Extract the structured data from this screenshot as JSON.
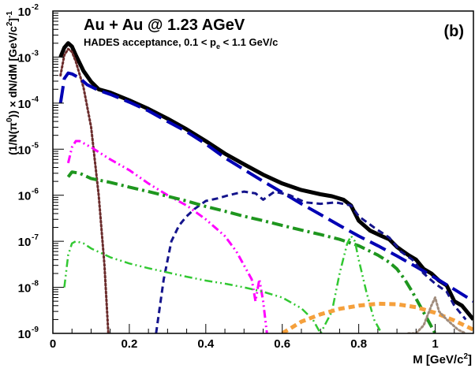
{
  "chart_data": {
    "type": "line",
    "title": "Au + Au @ 1.23 AGeV",
    "subtitle": {
      "prefix": "HADES acceptance, 0.1 < p",
      "sub": "e",
      "suffix": " < 1.1 GeV/c"
    },
    "panel_label": "(b)",
    "xlabel": {
      "prefix": "M  [GeV/c",
      "sup": "2",
      "suffix": "]"
    },
    "ylabel": {
      "parts": [
        {
          "t": "(1/N(",
          "s": "base"
        },
        {
          "t": "π",
          "s": "base"
        },
        {
          "t": "0",
          "s": "sup"
        },
        {
          "t": "))  ×  dN/dM  [GeV/c",
          "s": "base"
        },
        {
          "t": "2",
          "s": "sup"
        },
        {
          "t": "]",
          "s": "base"
        },
        {
          "t": "-1",
          "s": "sup"
        }
      ]
    },
    "xlim": [
      0,
      1.1
    ],
    "ylim": [
      1e-09,
      0.01
    ],
    "y_scale": "log",
    "x_ticks": [
      "0",
      "0.2",
      "0.4",
      "0.6",
      "0.8",
      "1"
    ],
    "x_tick_values": [
      0,
      0.2,
      0.4,
      0.6,
      0.8,
      1.0
    ],
    "y_ticks": [
      {
        "base": "10",
        "exp": "-9"
      },
      {
        "base": "10",
        "exp": "-8"
      },
      {
        "base": "10",
        "exp": "-7"
      },
      {
        "base": "10",
        "exp": "-6"
      },
      {
        "base": "10",
        "exp": "-5"
      },
      {
        "base": "10",
        "exp": "-4"
      },
      {
        "base": "10",
        "exp": "-3"
      },
      {
        "base": "10",
        "exp": "-2"
      }
    ],
    "y_tick_values": [
      1e-09,
      1e-08,
      1e-07,
      1e-06,
      1e-05,
      0.0001,
      0.001,
      0.01
    ],
    "grid": false,
    "series": [
      {
        "color": "#000000",
        "style": "solid",
        "width": 5,
        "points": [
          [
            0.02,
            0.001
          ],
          [
            0.03,
            0.0016
          ],
          [
            0.04,
            0.002
          ],
          [
            0.05,
            0.0017
          ],
          [
            0.06,
            0.0011
          ],
          [
            0.08,
            0.0005
          ],
          [
            0.1,
            0.00029
          ],
          [
            0.12,
            0.0002
          ],
          [
            0.15,
            0.00017
          ],
          [
            0.2,
            0.000115
          ],
          [
            0.25,
            7.5e-05
          ],
          [
            0.3,
            4.6e-05
          ],
          [
            0.35,
            2.7e-05
          ],
          [
            0.4,
            1.5e-05
          ],
          [
            0.45,
            8e-06
          ],
          [
            0.5,
            4.7e-06
          ],
          [
            0.55,
            2.8e-06
          ],
          [
            0.6,
            1.8e-06
          ],
          [
            0.65,
            1.3e-06
          ],
          [
            0.7,
            1.05e-06
          ],
          [
            0.73,
            9.5e-07
          ],
          [
            0.76,
            8e-07
          ],
          [
            0.78,
            6e-07
          ],
          [
            0.8,
            2.8e-07
          ],
          [
            0.83,
            1.7e-07
          ],
          [
            0.86,
            1.3e-07
          ],
          [
            0.88,
            1.1e-07
          ],
          [
            0.9,
            7.5e-08
          ],
          [
            0.93,
            5e-08
          ],
          [
            0.95,
            4e-08
          ],
          [
            0.97,
            2.5e-08
          ],
          [
            0.99,
            2e-08
          ],
          [
            1.01,
            1.4e-08
          ],
          [
            1.03,
            1.1e-08
          ],
          [
            1.05,
            5e-09
          ],
          [
            1.07,
            4e-09
          ],
          [
            1.1,
            2e-09
          ]
        ]
      },
      {
        "color": "#6b2c2c",
        "style": "dotted",
        "width": 3,
        "points": [
          [
            0.02,
            0.0004
          ],
          [
            0.03,
            0.0011
          ],
          [
            0.04,
            0.0015
          ],
          [
            0.05,
            0.0013
          ],
          [
            0.06,
            0.0008
          ],
          [
            0.08,
            0.00022
          ],
          [
            0.1,
            3e-05
          ],
          [
            0.12,
            1e-06
          ],
          [
            0.135,
            3e-08
          ],
          [
            0.145,
            1e-09
          ]
        ]
      },
      {
        "color": "#0000b4",
        "style": "longdash",
        "width": 4,
        "points": [
          [
            0.02,
            0.0001
          ],
          [
            0.03,
            0.00034
          ],
          [
            0.04,
            0.00045
          ],
          [
            0.05,
            0.00043
          ],
          [
            0.07,
            0.00035
          ],
          [
            0.09,
            0.00025
          ],
          [
            0.12,
            0.00019
          ],
          [
            0.15,
            0.000155
          ],
          [
            0.2,
            0.000105
          ],
          [
            0.25,
            6.8e-05
          ],
          [
            0.3,
            4e-05
          ],
          [
            0.35,
            2.4e-05
          ],
          [
            0.4,
            1.3e-05
          ],
          [
            0.45,
            6.5e-06
          ],
          [
            0.5,
            3.6e-06
          ],
          [
            0.55,
            2e-06
          ],
          [
            0.6,
            1.15e-06
          ],
          [
            0.65,
            6.5e-07
          ],
          [
            0.7,
            3.8e-07
          ],
          [
            0.75,
            2.2e-07
          ],
          [
            0.8,
            1.3e-07
          ],
          [
            0.85,
            8e-08
          ],
          [
            0.9,
            4.8e-08
          ],
          [
            0.95,
            2.8e-08
          ],
          [
            1.0,
            1.6e-08
          ],
          [
            1.05,
            9e-09
          ],
          [
            1.1,
            5e-09
          ]
        ]
      },
      {
        "color": "#14148c",
        "style": "shortdash",
        "width": 3,
        "points": [
          [
            0.27,
            1e-09
          ],
          [
            0.29,
            1.5e-08
          ],
          [
            0.31,
            1e-07
          ],
          [
            0.33,
            2.2e-07
          ],
          [
            0.35,
            3.5e-07
          ],
          [
            0.37,
            5e-07
          ],
          [
            0.4,
            7.5e-07
          ],
          [
            0.43,
            8.5e-07
          ],
          [
            0.46,
            1e-06
          ],
          [
            0.5,
            1.2e-06
          ],
          [
            0.53,
            1.1e-06
          ],
          [
            0.55,
            8e-07
          ],
          [
            0.58,
            1.2e-06
          ],
          [
            0.62,
            1e-06
          ],
          [
            0.66,
            7e-07
          ],
          [
            0.7,
            6.5e-07
          ],
          [
            0.74,
            7e-07
          ],
          [
            0.78,
            6e-07
          ],
          [
            0.8,
            3.5e-07
          ],
          [
            0.84,
            2e-07
          ],
          [
            0.88,
            1.2e-07
          ],
          [
            0.91,
            6e-08
          ],
          [
            0.94,
            4e-08
          ],
          [
            0.97,
            2e-08
          ],
          [
            1.0,
            1.2e-08
          ],
          [
            1.03,
            8e-09
          ],
          [
            1.05,
            4e-09
          ],
          [
            1.08,
            2e-09
          ]
        ]
      },
      {
        "color": "#ff00ff",
        "style": "dashdotdot",
        "width": 3,
        "points": [
          [
            0.04,
            5e-06
          ],
          [
            0.05,
            1.1e-05
          ],
          [
            0.06,
            1.5e-05
          ],
          [
            0.07,
            1.5e-05
          ],
          [
            0.1,
            1.1e-05
          ],
          [
            0.15,
            6e-06
          ],
          [
            0.2,
            3.5e-06
          ],
          [
            0.25,
            1.8e-06
          ],
          [
            0.3,
            1e-06
          ],
          [
            0.35,
            6e-07
          ],
          [
            0.4,
            3e-07
          ],
          [
            0.45,
            1.3e-07
          ],
          [
            0.48,
            6e-08
          ],
          [
            0.5,
            3e-08
          ],
          [
            0.52,
            1.5e-08
          ],
          [
            0.53,
            5e-09
          ],
          [
            0.54,
            1.5e-08
          ],
          [
            0.55,
            5e-09
          ],
          [
            0.56,
            1e-09
          ]
        ]
      },
      {
        "color": "#1e961e",
        "style": "dashdot",
        "width": 4,
        "points": [
          [
            0.04,
            2.5e-06
          ],
          [
            0.05,
            3.2e-06
          ],
          [
            0.07,
            3e-06
          ],
          [
            0.1,
            2.3e-06
          ],
          [
            0.15,
            1.9e-06
          ],
          [
            0.2,
            1.5e-06
          ],
          [
            0.25,
            1.2e-06
          ],
          [
            0.3,
            9.5e-07
          ],
          [
            0.35,
            7.5e-07
          ],
          [
            0.4,
            5.7e-07
          ],
          [
            0.45,
            4.5e-07
          ],
          [
            0.5,
            3.5e-07
          ],
          [
            0.55,
            2.8e-07
          ],
          [
            0.6,
            2.2e-07
          ],
          [
            0.65,
            1.75e-07
          ],
          [
            0.7,
            1.4e-07
          ],
          [
            0.75,
            1.1e-07
          ],
          [
            0.8,
            8e-08
          ],
          [
            0.85,
            5e-08
          ],
          [
            0.88,
            3.5e-08
          ],
          [
            0.9,
            2.5e-08
          ],
          [
            0.92,
            1.5e-08
          ],
          [
            0.94,
            8e-09
          ],
          [
            0.96,
            4e-09
          ],
          [
            0.98,
            2e-09
          ],
          [
            1.0,
            1e-09
          ]
        ]
      },
      {
        "color": "#32c832",
        "style": "dashdotdot",
        "width": 2.5,
        "points": [
          [
            0.03,
            1e-08
          ],
          [
            0.04,
            5e-08
          ],
          [
            0.05,
            9e-08
          ],
          [
            0.06,
            1e-07
          ],
          [
            0.08,
            9e-08
          ],
          [
            0.1,
            7e-08
          ],
          [
            0.15,
            4.5e-08
          ],
          [
            0.2,
            3.3e-08
          ],
          [
            0.25,
            2.6e-08
          ],
          [
            0.3,
            2.1e-08
          ],
          [
            0.35,
            1.7e-08
          ],
          [
            0.4,
            1.4e-08
          ],
          [
            0.45,
            1.2e-08
          ],
          [
            0.5,
            1e-08
          ],
          [
            0.55,
            8e-09
          ],
          [
            0.6,
            6e-09
          ],
          [
            0.65,
            3.5e-09
          ],
          [
            0.68,
            2e-09
          ],
          [
            0.7,
            1e-09
          ],
          [
            0.73,
            3e-09
          ],
          [
            0.75,
            2e-08
          ],
          [
            0.77,
            9e-08
          ],
          [
            0.78,
            1.3e-07
          ],
          [
            0.79,
            1e-07
          ],
          [
            0.8,
            4e-08
          ],
          [
            0.82,
            8e-09
          ],
          [
            0.84,
            2e-09
          ],
          [
            0.86,
            1e-09
          ]
        ]
      },
      {
        "color": "#f5a03c",
        "style": "shortdash",
        "width": 5,
        "points": [
          [
            0.6,
            1e-09
          ],
          [
            0.65,
            1.8e-09
          ],
          [
            0.7,
            2.6e-09
          ],
          [
            0.75,
            3.4e-09
          ],
          [
            0.8,
            4e-09
          ],
          [
            0.85,
            4.4e-09
          ],
          [
            0.9,
            4.3e-09
          ],
          [
            0.95,
            3.7e-09
          ],
          [
            1.0,
            2.8e-09
          ],
          [
            1.05,
            1.9e-09
          ],
          [
            1.1,
            1.2e-09
          ]
        ]
      },
      {
        "color": "#a08c7c",
        "style": "dotted",
        "width": 3,
        "points": [
          [
            0.93,
            1e-09
          ],
          [
            0.95,
            1e-09
          ],
          [
            0.97,
            1.5e-09
          ],
          [
            0.99,
            4e-09
          ],
          [
            1.0,
            6e-09
          ],
          [
            1.01,
            3e-09
          ],
          [
            1.03,
            2e-09
          ],
          [
            1.06,
            1.2e-09
          ],
          [
            1.08,
            1e-09
          ]
        ]
      }
    ]
  }
}
